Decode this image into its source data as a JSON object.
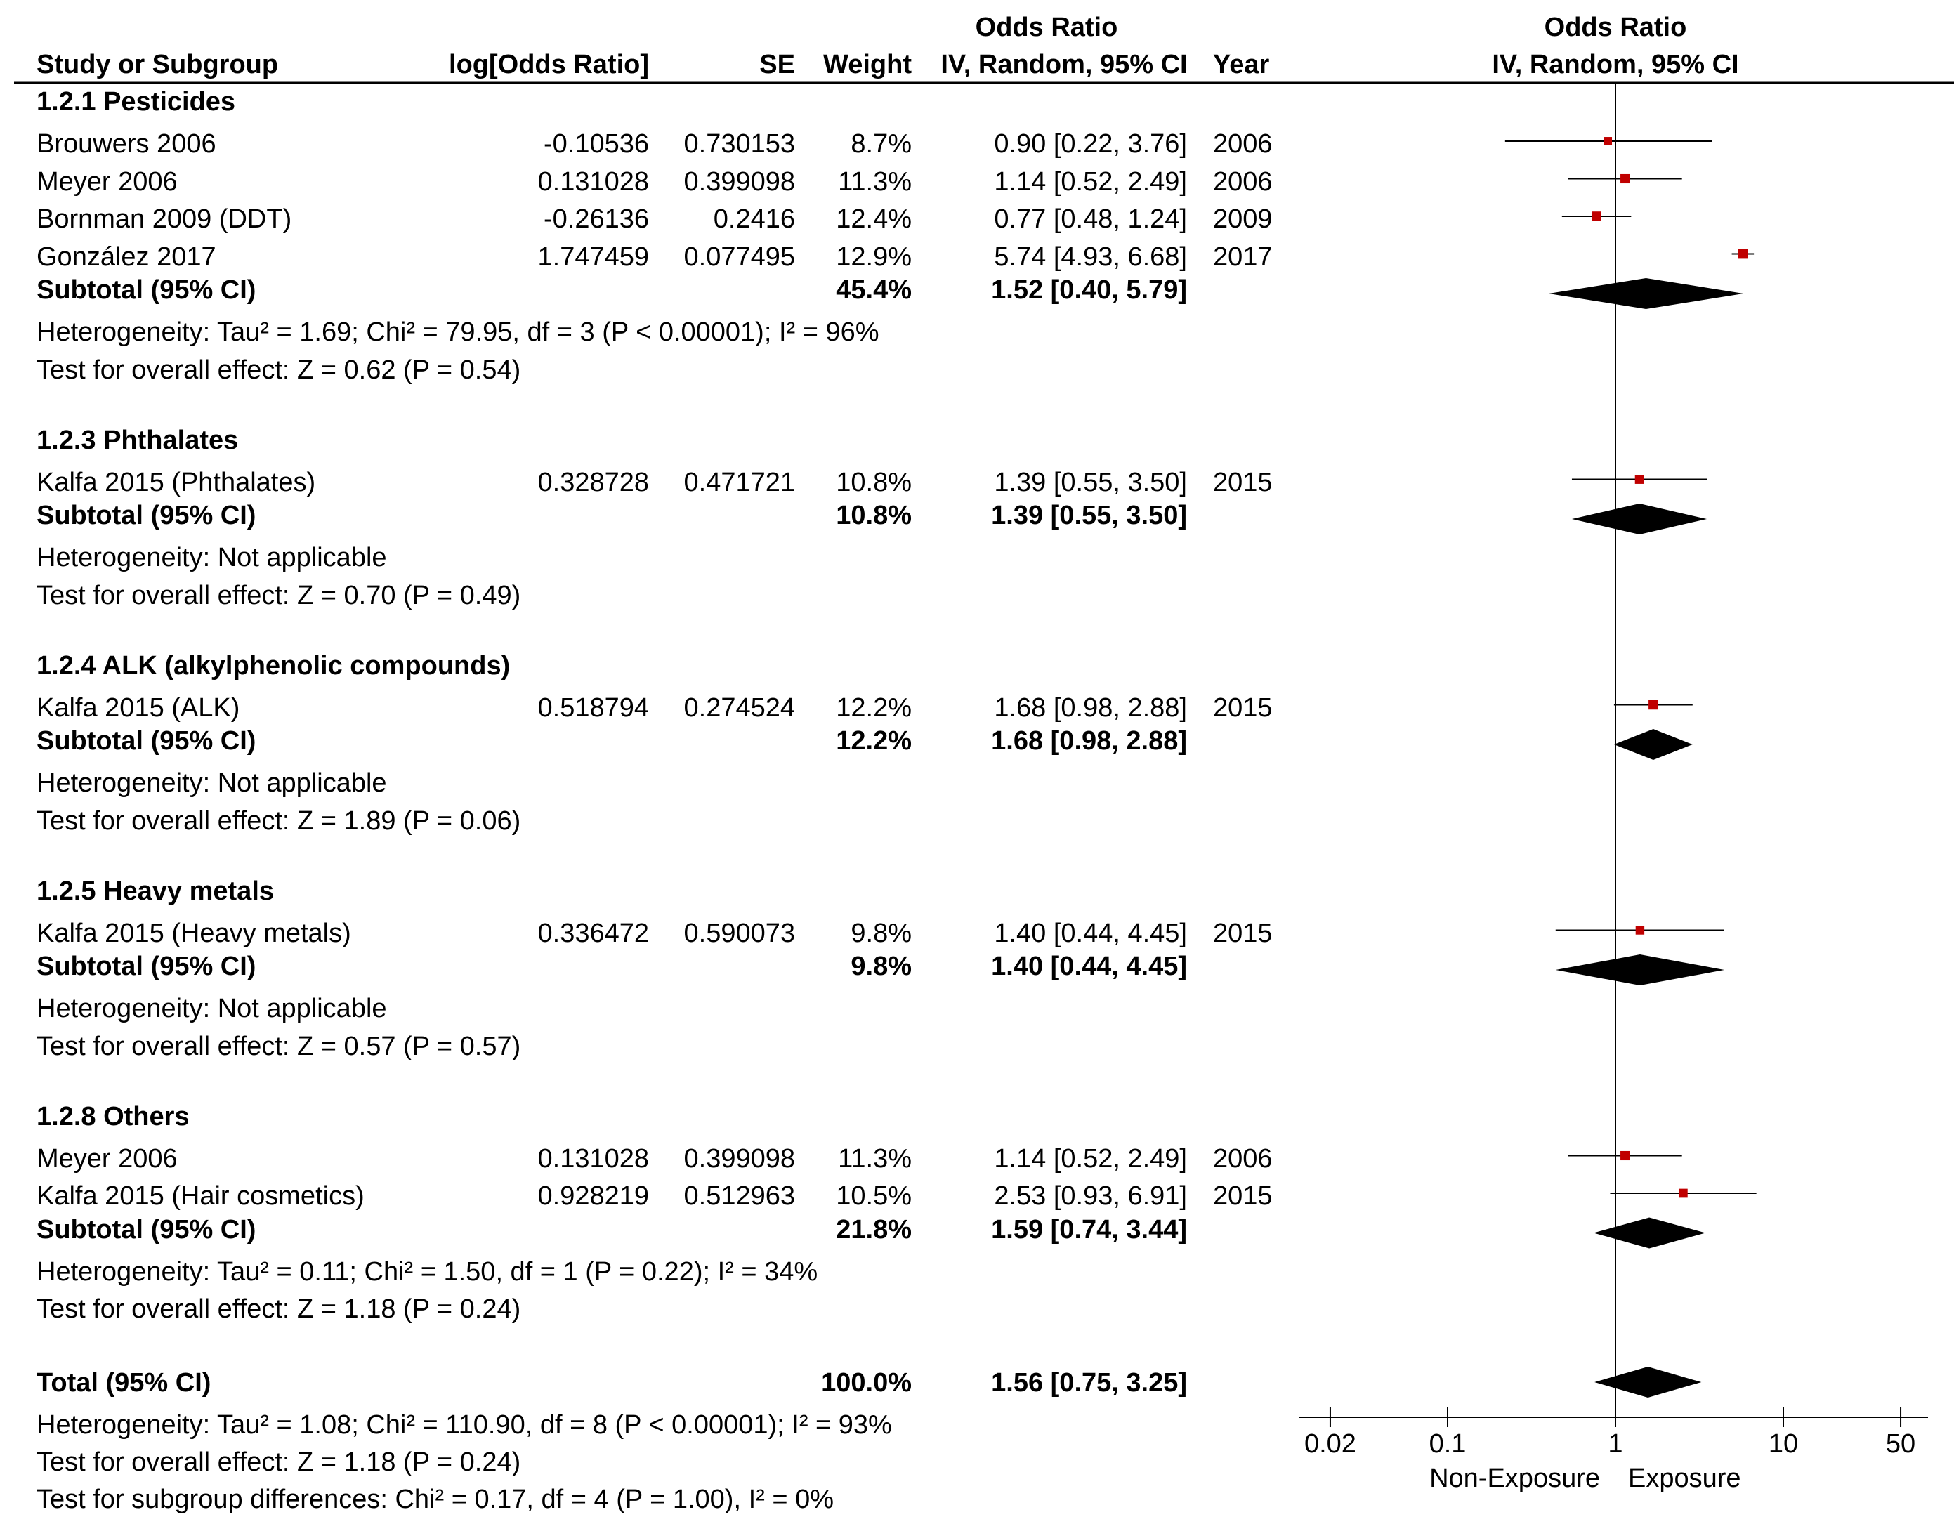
{
  "header": {
    "col_study": "Study or Subgroup",
    "col_logor": "log[Odds Ratio]",
    "col_se": "SE",
    "col_weight": "Weight",
    "col_or_top": "Odds Ratio",
    "col_or_bottom": "IV, Random, 95% CI",
    "col_year": "Year",
    "plot_top": "Odds Ratio",
    "plot_bottom": "IV, Random, 95% CI"
  },
  "subgroups": [
    {
      "title": "1.2.1 Pesticides",
      "studies": [
        {
          "name": "Brouwers 2006",
          "logor": "-0.10536",
          "se": "0.730153",
          "weight": "8.7%",
          "ci_text": "0.90 [0.22, 3.76]",
          "year": "2006"
        },
        {
          "name": "Meyer 2006",
          "logor": "0.131028",
          "se": "0.399098",
          "weight": "11.3%",
          "ci_text": "1.14 [0.52, 2.49]",
          "year": "2006"
        },
        {
          "name": "Bornman 2009 (DDT)",
          "logor": "-0.26136",
          "se": "0.2416",
          "weight": "12.4%",
          "ci_text": "0.77 [0.48, 1.24]",
          "year": "2009"
        },
        {
          "name": "González 2017",
          "logor": "1.747459",
          "se": "0.077495",
          "weight": "12.9%",
          "ci_text": "5.74 [4.93, 6.68]",
          "year": "2017"
        }
      ],
      "subtotal": {
        "label": "Subtotal (95% CI)",
        "weight": "45.4%",
        "ci_text": "1.52 [0.40, 5.79]"
      },
      "heterogeneity": "Heterogeneity: Tau² = 1.69; Chi² = 79.95, df = 3 (P < 0.00001); I² = 96%",
      "overall": "Test for overall effect: Z = 0.62 (P = 0.54)"
    },
    {
      "title": "1.2.3 Phthalates",
      "studies": [
        {
          "name": "Kalfa 2015 (Phthalates)",
          "logor": "0.328728",
          "se": "0.471721",
          "weight": "10.8%",
          "ci_text": "1.39 [0.55, 3.50]",
          "year": "2015"
        }
      ],
      "subtotal": {
        "label": "Subtotal (95% CI)",
        "weight": "10.8%",
        "ci_text": "1.39 [0.55, 3.50]"
      },
      "heterogeneity": "Heterogeneity: Not applicable",
      "overall": "Test for overall effect: Z = 0.70 (P = 0.49)"
    },
    {
      "title": "1.2.4 ALK (alkylphenolic compounds)",
      "studies": [
        {
          "name": "Kalfa 2015 (ALK)",
          "logor": "0.518794",
          "se": "0.274524",
          "weight": "12.2%",
          "ci_text": "1.68 [0.98, 2.88]",
          "year": "2015"
        }
      ],
      "subtotal": {
        "label": "Subtotal (95% CI)",
        "weight": "12.2%",
        "ci_text": "1.68 [0.98, 2.88]"
      },
      "heterogeneity": "Heterogeneity: Not applicable",
      "overall": "Test for overall effect: Z = 1.89 (P = 0.06)"
    },
    {
      "title": "1.2.5 Heavy metals",
      "studies": [
        {
          "name": "Kalfa 2015 (Heavy metals)",
          "logor": "0.336472",
          "se": "0.590073",
          "weight": "9.8%",
          "ci_text": "1.40 [0.44, 4.45]",
          "year": "2015"
        }
      ],
      "subtotal": {
        "label": "Subtotal (95% CI)",
        "weight": "9.8%",
        "ci_text": "1.40 [0.44, 4.45]"
      },
      "heterogeneity": "Heterogeneity: Not applicable",
      "overall": "Test for overall effect: Z = 0.57 (P = 0.57)"
    },
    {
      "title": "1.2.8 Others",
      "studies": [
        {
          "name": "Meyer 2006",
          "logor": "0.131028",
          "se": "0.399098",
          "weight": "11.3%",
          "ci_text": "1.14 [0.52, 2.49]",
          "year": "2006"
        },
        {
          "name": "Kalfa 2015 (Hair cosmetics)",
          "logor": "0.928219",
          "se": "0.512963",
          "weight": "10.5%",
          "ci_text": "2.53 [0.93, 6.91]",
          "year": "2015"
        }
      ],
      "subtotal": {
        "label": "Subtotal (95% CI)",
        "weight": "21.8%",
        "ci_text": "1.59 [0.74, 3.44]"
      },
      "heterogeneity": "Heterogeneity: Tau² = 0.11; Chi² = 1.50, df = 1 (P = 0.22); I² = 34%",
      "overall": "Test for overall effect: Z = 1.18 (P = 0.24)"
    }
  ],
  "total": {
    "label": "Total (95% CI)",
    "weight": "100.0%",
    "ci_text": "1.56 [0.75, 3.25]",
    "heterogeneity": "Heterogeneity: Tau² = 1.08; Chi² = 110.90, df = 8 (P < 0.00001); I² = 93%",
    "overall": "Test for overall effect: Z = 1.18 (P = 0.24)",
    "subgroup_diff": "Test for subgroup differences: Chi² = 0.17, df = 4 (P = 1.00), I² = 0%"
  },
  "axis": {
    "ticks": [
      0.02,
      0.1,
      1,
      10,
      50
    ],
    "tick_labels": [
      "0.02",
      "0.1",
      "1",
      "10",
      "50"
    ],
    "left_label": "Non-Exposure",
    "right_label": "Exposure"
  },
  "colors": {
    "study_marker": "#c00000",
    "diamond": "#000000",
    "line": "#000000"
  },
  "chart_data": {
    "type": "scatter",
    "scale": "log",
    "xlim": [
      0.02,
      50
    ],
    "reference": 1,
    "series": [
      {
        "name": "Brouwers 2006",
        "or": 0.9,
        "lo": 0.22,
        "hi": 3.76,
        "weight": 8.7
      },
      {
        "name": "Meyer 2006",
        "or": 1.14,
        "lo": 0.52,
        "hi": 2.49,
        "weight": 11.3
      },
      {
        "name": "Bornman 2009 (DDT)",
        "or": 0.77,
        "lo": 0.48,
        "hi": 1.24,
        "weight": 12.4
      },
      {
        "name": "González 2017",
        "or": 5.74,
        "lo": 4.93,
        "hi": 6.68,
        "weight": 12.9
      },
      {
        "name": "Subtotal (95% CI)",
        "or": 1.52,
        "lo": 0.4,
        "hi": 5.79,
        "weight": 45.4,
        "diamond": true
      },
      {
        "name": "Kalfa 2015 (Phthalates)",
        "or": 1.39,
        "lo": 0.55,
        "hi": 3.5,
        "weight": 10.8
      },
      {
        "name": "Subtotal (95% CI)",
        "or": 1.39,
        "lo": 0.55,
        "hi": 3.5,
        "weight": 10.8,
        "diamond": true
      },
      {
        "name": "Kalfa 2015 (ALK)",
        "or": 1.68,
        "lo": 0.98,
        "hi": 2.88,
        "weight": 12.2
      },
      {
        "name": "Subtotal (95% CI)",
        "or": 1.68,
        "lo": 0.98,
        "hi": 2.88,
        "weight": 12.2,
        "diamond": true
      },
      {
        "name": "Kalfa 2015 (Heavy metals)",
        "or": 1.4,
        "lo": 0.44,
        "hi": 4.45,
        "weight": 9.8
      },
      {
        "name": "Subtotal (95% CI)",
        "or": 1.4,
        "lo": 0.44,
        "hi": 4.45,
        "weight": 9.8,
        "diamond": true
      },
      {
        "name": "Meyer 2006",
        "or": 1.14,
        "lo": 0.52,
        "hi": 2.49,
        "weight": 11.3
      },
      {
        "name": "Kalfa 2015 (Hair cosmetics)",
        "or": 2.53,
        "lo": 0.93,
        "hi": 6.91,
        "weight": 10.5
      },
      {
        "name": "Subtotal (95% CI)",
        "or": 1.59,
        "lo": 0.74,
        "hi": 3.44,
        "weight": 21.8,
        "diamond": true
      },
      {
        "name": "Total (95% CI)",
        "or": 1.56,
        "lo": 0.75,
        "hi": 3.25,
        "weight": 100.0,
        "diamond": true
      }
    ]
  }
}
